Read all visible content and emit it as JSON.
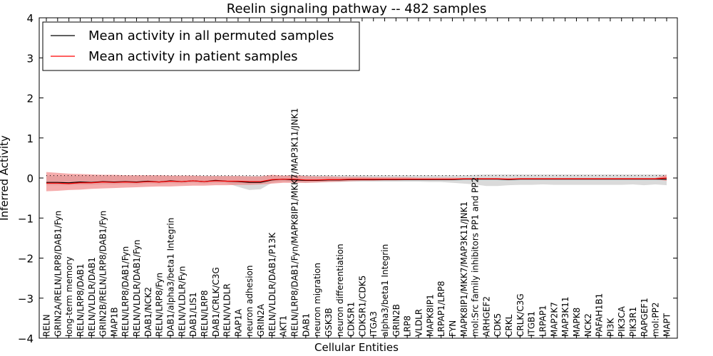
{
  "chart_data": {
    "type": "line",
    "title": "Reelin signaling pathway -- 482 samples",
    "xlabel": "Cellular Entities",
    "ylabel": "Inferred Activity",
    "ylim": [
      -4,
      4
    ],
    "yticks": [
      -4,
      -3,
      -2,
      -1,
      0,
      1,
      2,
      3,
      4
    ],
    "ytick_labels": [
      "−4",
      "−3",
      "−2",
      "−1",
      "0",
      "1",
      "2",
      "3",
      "4"
    ],
    "legend_position": "top-left",
    "categories": [
      "RELN",
      "GRIN2A/RELN/LRP8/DAB1/Fyn",
      "long-term memory",
      "RELN/LRP8/DAB1",
      "RELN/VLDLR/DAB1",
      "GRIN2B/RELN/LRP8/DAB1/Fyn",
      "MAP1B",
      "RELN/LRP8/DAB1/Fyn",
      "RELN/VLDLR/DAB1/Fyn",
      "DAB1/NCK2",
      "RELN/LRP8/Fyn",
      "DAB1/alpha3/beta1 Integrin",
      "RELN/VLDLR/Fyn",
      "DAB1/LIS1",
      "RELN/LRP8",
      "DAB1/CRLK/C3G",
      "RELN/VLDLR",
      "RAP1A",
      "neuron adhesion",
      "GRIN2A",
      "RELN/VLDLR/DAB1/P13K",
      "AKT1",
      "RELN/LRP8/DAB1/Fyn/MAPK8IP1/MKK7/MAP3K11/JNK1",
      "DAB1",
      "neuron migration",
      "GSK3B",
      "neuron differentiation",
      "CDK5R1",
      "CDK5R1/CDK5",
      "ITGA3",
      "alpha3/beta1 Integrin",
      "GRIN2B",
      "LRP8",
      "VLDLR",
      "MAPK8IP1",
      "LRPAP1/LRP8",
      "FYN",
      "MAPK8IP1/MKK7/MAP3K11/JNK1",
      "mol:Src family inhibitors PP1 and PP2",
      "ARHGEF2",
      "CDK5",
      "CRKL",
      "CRLK/C3G",
      "ITGB1",
      "LRPAP1",
      "MAP2K7",
      "MAP3K11",
      "MAPK8",
      "NCK2",
      "PAFAH1B1",
      "PI3K",
      "PIK3CA",
      "PIK3R1",
      "RAPGEF1",
      "mol:PP2",
      "MAPT"
    ],
    "series": [
      {
        "name": "Mean activity in all permuted samples",
        "color": "#000000",
        "values": [
          -0.11,
          -0.11,
          -0.12,
          -0.1,
          -0.11,
          -0.09,
          -0.1,
          -0.09,
          -0.1,
          -0.08,
          -0.1,
          -0.07,
          -0.09,
          -0.07,
          -0.09,
          -0.06,
          -0.08,
          -0.09,
          -0.11,
          -0.11,
          -0.05,
          -0.03,
          -0.05,
          -0.06,
          -0.06,
          -0.05,
          -0.05,
          -0.04,
          -0.04,
          -0.04,
          -0.04,
          -0.04,
          -0.04,
          -0.04,
          -0.04,
          -0.04,
          -0.04,
          -0.03,
          -0.03,
          -0.03,
          -0.03,
          -0.04,
          -0.03,
          -0.03,
          -0.03,
          -0.03,
          -0.03,
          -0.03,
          -0.03,
          -0.03,
          -0.03,
          -0.03,
          -0.03,
          -0.03,
          -0.03,
          -0.03
        ],
        "band": {
          "color": "#bbbbbb",
          "lower": [
            -0.18,
            -0.18,
            -0.18,
            -0.17,
            -0.17,
            -0.16,
            -0.16,
            -0.15,
            -0.16,
            -0.14,
            -0.15,
            -0.13,
            -0.14,
            -0.12,
            -0.14,
            -0.12,
            -0.13,
            -0.22,
            -0.3,
            -0.28,
            -0.12,
            -0.09,
            -0.1,
            -0.12,
            -0.11,
            -0.1,
            -0.1,
            -0.09,
            -0.09,
            -0.09,
            -0.09,
            -0.09,
            -0.09,
            -0.09,
            -0.1,
            -0.1,
            -0.12,
            -0.14,
            -0.16,
            -0.2,
            -0.2,
            -0.18,
            -0.17,
            -0.17,
            -0.16,
            -0.17,
            -0.17,
            -0.17,
            -0.17,
            -0.17,
            -0.17,
            -0.17,
            -0.16,
            -0.18,
            -0.16,
            -0.18
          ],
          "upper": [
            0.06,
            0.06,
            0.06,
            0.06,
            0.06,
            0.06,
            0.06,
            0.06,
            0.06,
            0.06,
            0.06,
            0.06,
            0.06,
            0.06,
            0.06,
            0.06,
            0.06,
            0.06,
            0.06,
            0.06,
            0.06,
            0.06,
            0.08,
            0.07,
            0.07,
            0.07,
            0.07,
            0.07,
            0.07,
            0.07,
            0.07,
            0.07,
            0.07,
            0.07,
            0.07,
            0.07,
            0.07,
            0.07,
            0.08,
            0.09,
            0.09,
            0.09,
            0.09,
            0.09,
            0.09,
            0.09,
            0.09,
            0.09,
            0.09,
            0.09,
            0.09,
            0.09,
            0.09,
            0.09,
            0.09,
            0.09
          ]
        }
      },
      {
        "name": "Mean activity in patient samples",
        "color": "#ff0000",
        "values": [
          -0.13,
          -0.13,
          -0.14,
          -0.12,
          -0.12,
          -0.1,
          -0.11,
          -0.1,
          -0.11,
          -0.09,
          -0.1,
          -0.08,
          -0.09,
          -0.07,
          -0.09,
          -0.07,
          -0.08,
          -0.08,
          -0.09,
          -0.09,
          -0.04,
          -0.03,
          -0.03,
          -0.05,
          -0.05,
          -0.04,
          -0.04,
          -0.03,
          -0.03,
          -0.03,
          -0.03,
          -0.03,
          -0.03,
          -0.03,
          -0.03,
          -0.03,
          -0.03,
          -0.02,
          -0.02,
          -0.02,
          -0.02,
          -0.03,
          -0.02,
          -0.02,
          -0.02,
          -0.02,
          -0.02,
          -0.02,
          -0.02,
          -0.02,
          -0.02,
          -0.02,
          -0.02,
          -0.02,
          -0.02,
          0.0
        ],
        "band": {
          "color": "#f08080",
          "lower": [
            -0.33,
            -0.32,
            -0.3,
            -0.29,
            -0.27,
            -0.26,
            -0.25,
            -0.24,
            -0.23,
            -0.22,
            -0.21,
            -0.21,
            -0.2,
            -0.19,
            -0.19,
            -0.18,
            -0.18,
            -0.17,
            -0.17,
            -0.16,
            -0.14,
            -0.12,
            -0.12,
            -0.12,
            -0.11,
            -0.1,
            -0.09,
            -0.08,
            -0.07,
            -0.07,
            -0.06,
            -0.06,
            -0.05,
            -0.05,
            -0.05,
            -0.04,
            -0.04,
            -0.04,
            -0.03,
            -0.03,
            -0.03,
            -0.03,
            -0.03,
            -0.03,
            -0.03,
            -0.03,
            -0.03,
            -0.03,
            -0.03,
            -0.03,
            -0.03,
            -0.03,
            -0.03,
            -0.03,
            -0.03,
            -0.07
          ],
          "upper": [
            0.15,
            0.13,
            0.11,
            0.1,
            0.09,
            0.08,
            0.08,
            0.07,
            0.07,
            0.07,
            0.07,
            0.06,
            0.06,
            0.06,
            0.05,
            0.05,
            0.05,
            0.05,
            0.04,
            0.04,
            0.08,
            0.06,
            0.07,
            0.05,
            0.04,
            0.04,
            0.03,
            0.03,
            0.03,
            0.02,
            0.02,
            0.02,
            0.02,
            0.01,
            0.01,
            0.01,
            0.01,
            0.0,
            0.0,
            0.0,
            0.0,
            0.0,
            0.0,
            0.0,
            0.0,
            0.0,
            0.0,
            0.0,
            0.0,
            0.0,
            0.0,
            0.0,
            0.0,
            0.0,
            0.0,
            0.08
          ]
        }
      }
    ]
  }
}
